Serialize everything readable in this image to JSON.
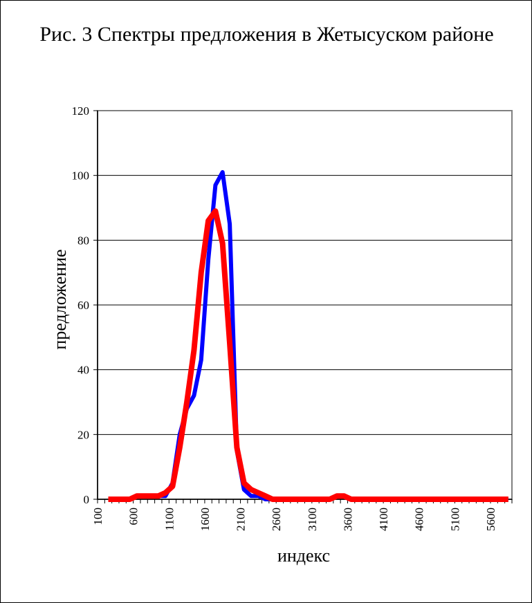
{
  "chart_data": {
    "type": "line",
    "title": "Рис. 3 Спектры предложения в Жетысуском районе",
    "xlabel": "индекс",
    "ylabel": "предложение",
    "ylim": [
      0,
      120
    ],
    "yticks": [
      0,
      20,
      40,
      60,
      80,
      100,
      120
    ],
    "xtick_labels": [
      "100",
      "600",
      "1100",
      "1600",
      "2100",
      "2600",
      "3100",
      "3600",
      "4100",
      "4600",
      "5100",
      "5600"
    ],
    "grid": true,
    "legend": "none",
    "x": [
      100,
      200,
      300,
      400,
      500,
      600,
      700,
      800,
      900,
      1000,
      1100,
      1200,
      1300,
      1400,
      1500,
      1600,
      1700,
      1800,
      1900,
      2000,
      2100,
      2200,
      2300,
      2400,
      2500,
      2600,
      2700,
      2800,
      2900,
      3000,
      3100,
      3200,
      3300,
      3400,
      3500,
      3600,
      3700,
      3800,
      3900,
      4000,
      4100,
      4200,
      4300,
      4400,
      4500,
      4600,
      4700,
      4800,
      4900,
      5000,
      5100,
      5200,
      5300,
      5400,
      5500,
      5600,
      5700
    ],
    "series": [
      {
        "color": "#0000ff",
        "values": [
          0,
          0,
          0,
          0,
          1,
          1,
          1,
          1,
          1,
          5,
          20,
          28,
          32,
          43,
          74,
          97,
          101,
          85,
          15,
          3,
          1,
          1,
          0,
          0,
          0,
          0,
          0,
          0,
          0,
          0,
          0,
          0,
          1,
          1,
          0,
          0,
          0,
          0,
          0,
          0,
          0,
          0,
          0,
          0,
          0,
          0,
          0,
          0,
          0,
          0,
          0,
          0,
          0,
          0,
          0,
          0,
          0
        ]
      },
      {
        "color": "#ff0000",
        "values": [
          0,
          0,
          0,
          0,
          1,
          1,
          1,
          1,
          2,
          4,
          16,
          30,
          46,
          70,
          86,
          89,
          79,
          48,
          16,
          5,
          3,
          2,
          1,
          0,
          0,
          0,
          0,
          0,
          0,
          0,
          0,
          0,
          1,
          1,
          0,
          0,
          0,
          0,
          0,
          0,
          0,
          0,
          0,
          0,
          0,
          0,
          0,
          0,
          0,
          0,
          0,
          0,
          0,
          0,
          0,
          0,
          0
        ]
      }
    ]
  }
}
